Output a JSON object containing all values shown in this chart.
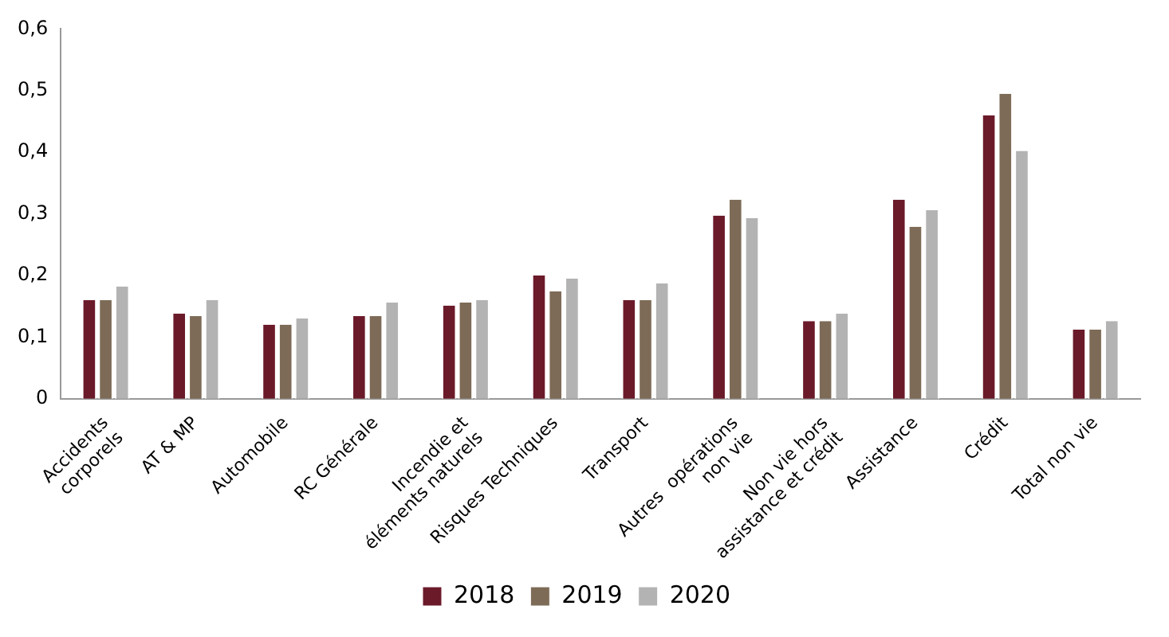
{
  "chart_data": {
    "type": "bar",
    "categories": [
      "Accidents corporels",
      "AT & MP",
      "Automobile",
      "RC Générale",
      "Incendie et éléments naturels",
      "Risques Techniques",
      "Transport",
      "Autres  opérations non vie",
      "Non vie hors assistance et crédit",
      "Assistance",
      "Crédit",
      "Total non vie"
    ],
    "series": [
      {
        "name": "2018",
        "color": "#6b1a2a",
        "values": [
          0.16,
          0.138,
          0.12,
          0.134,
          0.151,
          0.2,
          0.16,
          0.297,
          0.126,
          0.323,
          0.46,
          0.112
        ]
      },
      {
        "name": "2019",
        "color": "#7d6b57",
        "values": [
          0.16,
          0.134,
          0.12,
          0.134,
          0.156,
          0.174,
          0.16,
          0.323,
          0.126,
          0.279,
          0.495,
          0.112
        ]
      },
      {
        "name": "2020",
        "color": "#b3b3b3",
        "values": [
          0.182,
          0.16,
          0.13,
          0.156,
          0.16,
          0.195,
          0.187,
          0.293,
          0.138,
          0.306,
          0.402,
          0.126
        ]
      }
    ],
    "ylim": [
      0,
      0.6
    ],
    "yticks": [
      {
        "value": 0,
        "label": "0"
      },
      {
        "value": 0.1,
        "label": "0,1"
      },
      {
        "value": 0.2,
        "label": "0,2"
      },
      {
        "value": 0.3,
        "label": "0,3"
      },
      {
        "value": 0.4,
        "label": "0,4"
      },
      {
        "value": 0.5,
        "label": "0,5"
      },
      {
        "value": 0.6,
        "label": "0,6"
      }
    ],
    "grid": false,
    "legend": "bottom"
  }
}
